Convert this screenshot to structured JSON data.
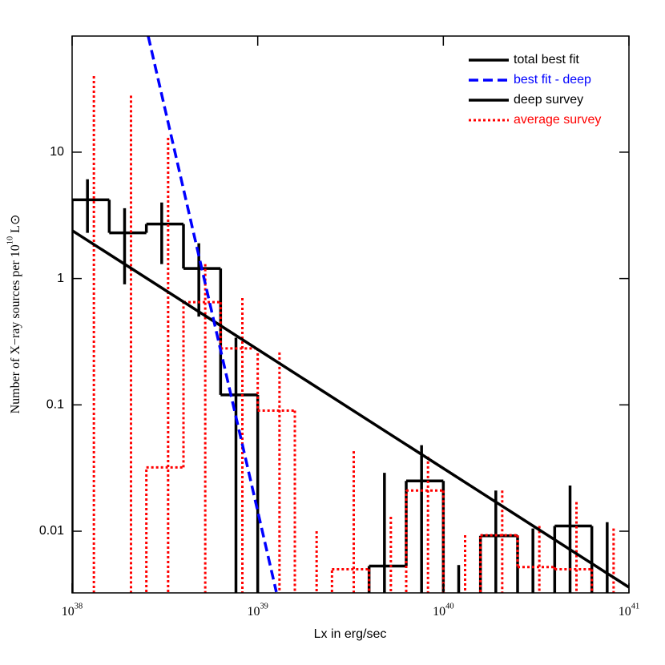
{
  "chart_data": {
    "type": "histogram",
    "x_label": "Lx in erg/sec",
    "y_label": "Number of X−ray sources per 10^{10} L⊙",
    "log_x": true,
    "log_y": true,
    "xlim": [
      1e+38,
      1e+41
    ],
    "ylim": [
      0.00325,
      83
    ],
    "xticks": [
      {
        "value": 1e+38,
        "label": "10^{38}"
      },
      {
        "value": 1e+39,
        "label": "10^{39}"
      },
      {
        "value": 1e+40,
        "label": "10^{40}"
      },
      {
        "value": 1e+41,
        "label": "10^{41}"
      }
    ],
    "yticks": [
      0.01,
      0.1,
      1,
      10
    ],
    "legend": "upper right",
    "bins": [
      1e+38,
      1.585e+38,
      2.512e+38,
      3.981e+38,
      6.31e+38,
      1e+39,
      1.585e+39,
      2.512e+39,
      3.981e+39,
      6.31e+39,
      1e+40,
      1.585e+40,
      2.512e+40,
      3.981e+40,
      6.31e+40,
      1e+41
    ],
    "series": [
      {
        "name": "total best fit",
        "type": "line",
        "color": "#000000",
        "style": "solid",
        "x": [
          1e+38,
          1e+41
        ],
        "values": [
          2.4,
          0.0036
        ]
      },
      {
        "name": "best fit - deep",
        "type": "line",
        "color": "#0000ff",
        "style": "dashed",
        "x": [
          2.57e+38,
          1.26e+39
        ],
        "values": [
          83,
          0.0033
        ]
      },
      {
        "name": "deep survey",
        "type": "histogram",
        "color": "#000000",
        "style": "solid",
        "values": [
          4.2,
          2.3,
          2.7,
          1.2,
          0.12,
          null,
          null,
          null,
          0.0053,
          0.025,
          null,
          0.0092,
          null,
          0.011,
          null
        ],
        "err_high": [
          6.1,
          3.6,
          4.0,
          1.9,
          0.34,
          null,
          null,
          null,
          0.029,
          0.048,
          0.0054,
          0.021,
          0.0105,
          0.023,
          0.0118
        ],
        "err_low": [
          2.3,
          0.9,
          1.3,
          0.5,
          null,
          null,
          null,
          null,
          null,
          null,
          null,
          null,
          null,
          null,
          null
        ]
      },
      {
        "name": "average survey",
        "type": "histogram",
        "color": "#ff0000",
        "style": "dotted",
        "values": [
          null,
          null,
          0.032,
          0.65,
          0.28,
          0.09,
          null,
          0.005,
          null,
          0.021,
          null,
          0.0093,
          0.0052,
          0.005,
          null
        ],
        "err_high": [
          40,
          28,
          13,
          1.3,
          0.7,
          0.26,
          0.01,
          0.043,
          0.013,
          0.039,
          0.0093,
          0.021,
          0.011,
          0.017,
          0.0105
        ],
        "err_low": [
          null,
          null,
          null,
          null,
          null,
          null,
          null,
          null,
          null,
          null,
          null,
          null,
          null,
          null,
          null
        ]
      }
    ]
  }
}
